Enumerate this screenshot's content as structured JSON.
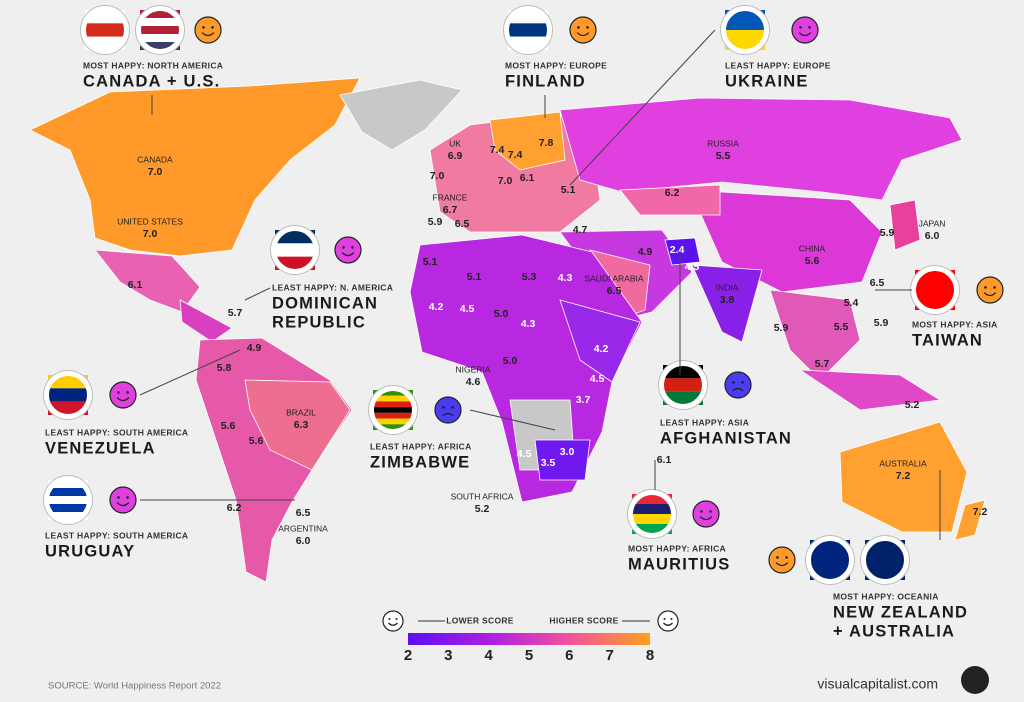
{
  "callouts": [
    {
      "tag": "MOST HAPPY: NORTH AMERICA",
      "name": [
        "CANADA + U.S."
      ]
    },
    {
      "tag": "MOST HAPPY: EUROPE",
      "name": [
        "FINLAND"
      ]
    },
    {
      "tag": "LEAST HAPPY: EUROPE",
      "name": [
        "UKRAINE"
      ]
    },
    {
      "tag": "LEAST HAPPY: N. AMERICA",
      "name": [
        "DOMINICAN",
        "REPUBLIC"
      ]
    },
    {
      "tag": "MOST HAPPY: ASIA",
      "name": [
        "TAIWAN"
      ]
    },
    {
      "tag": "LEAST HAPPY: SOUTH AMERICA",
      "name": [
        "VENEZUELA"
      ]
    },
    {
      "tag": "LEAST HAPPY: ASIA",
      "name": [
        "AFGHANISTAN"
      ]
    },
    {
      "tag": "LEAST HAPPY: AFRICA",
      "name": [
        "ZIMBABWE"
      ]
    },
    {
      "tag": "LEAST HAPPY: SOUTH AMERICA",
      "name": [
        "URUGUAY"
      ]
    },
    {
      "tag": "MOST HAPPY: AFRICA",
      "name": [
        "MAURITIUS"
      ]
    },
    {
      "tag": "MOST HAPPY: OCEANIA",
      "name": [
        "NEW ZEALAND",
        "+ AUSTRALIA"
      ]
    }
  ],
  "labels": [
    {
      "name": "CANADA",
      "score": "7.0"
    },
    {
      "name": "UNITED STATES",
      "score": "7.0"
    },
    {
      "score": "6.1"
    },
    {
      "score": "5.7"
    },
    {
      "name": "UK",
      "score": "6.9"
    },
    {
      "score": "7.0"
    },
    {
      "name": "FRANCE",
      "score": "6.7"
    },
    {
      "score": "5.9"
    },
    {
      "score": "6.5"
    },
    {
      "score": "7.4"
    },
    {
      "score": "7.4"
    },
    {
      "score": "7.8"
    },
    {
      "score": "7.0"
    },
    {
      "score": "6.1"
    },
    {
      "score": "5.1"
    },
    {
      "score": "4.7"
    },
    {
      "name": "RUSSIA",
      "score": "5.5"
    },
    {
      "score": "6.2"
    },
    {
      "score": "4.9"
    },
    {
      "score": "2.4"
    },
    {
      "score": "4.5"
    },
    {
      "name": "CHINA",
      "score": "5.6"
    },
    {
      "name": "JAPAN",
      "score": "6.0"
    },
    {
      "score": "5.9"
    },
    {
      "name": "INDIA",
      "score": "3.8"
    },
    {
      "name": "SAUDI ARABIA",
      "score": "6.5"
    },
    {
      "score": "4.3"
    },
    {
      "score": "5.3"
    },
    {
      "score": "5.1"
    },
    {
      "score": "5.1"
    },
    {
      "score": "4.2"
    },
    {
      "score": "4.5"
    },
    {
      "score": "5.0"
    },
    {
      "score": "4.3"
    },
    {
      "score": "4.2"
    },
    {
      "score": "4.5"
    },
    {
      "score": "3.7"
    },
    {
      "score": "5.0"
    },
    {
      "name": "NIGERIA",
      "score": "4.6"
    },
    {
      "score": "4.5"
    },
    {
      "score": "3.5"
    },
    {
      "score": "3.0"
    },
    {
      "name": "SOUTH AFRICA",
      "score": "5.2"
    },
    {
      "score": "6.1"
    },
    {
      "score": "6.5"
    },
    {
      "score": "5.4"
    },
    {
      "score": "5.5"
    },
    {
      "score": "5.9"
    },
    {
      "score": "5.9"
    },
    {
      "score": "5.7"
    },
    {
      "score": "5.2"
    },
    {
      "name": "AUSTRALIA",
      "score": "7.2"
    },
    {
      "score": "7.2"
    },
    {
      "name": "BRAZIL",
      "score": "6.3"
    },
    {
      "score": "4.9"
    },
    {
      "score": "5.8"
    },
    {
      "score": "5.6"
    },
    {
      "score": "5.6"
    },
    {
      "score": "6.2"
    },
    {
      "score": "6.5"
    },
    {
      "name": "ARGENTINA",
      "score": "6.0"
    }
  ],
  "legend": {
    "lower": "LOWER SCORE",
    "higher": "HIGHER SCORE",
    "ticks": [
      2,
      3,
      4,
      5,
      6,
      7,
      8
    ]
  },
  "source": "SOURCE: World Happiness Report 2022",
  "brand": "visualcapitalist.com"
}
